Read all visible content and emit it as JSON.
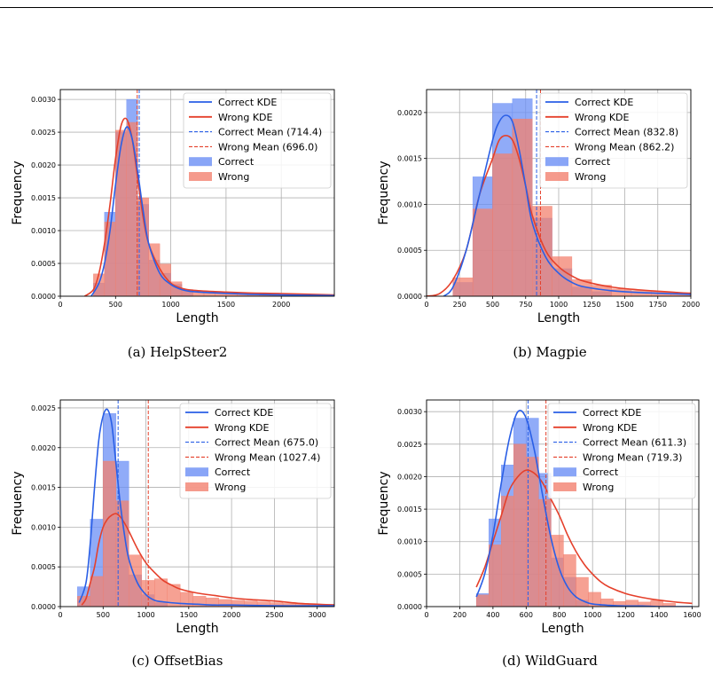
{
  "colors": {
    "correct": "#2a5fe6",
    "correct_fill": "#6b8ff5",
    "wrong": "#e5402b",
    "wrong_fill": "#f3816f",
    "grid": "#b0b0b0"
  },
  "chart_data": [
    {
      "type": "bar",
      "caption": "(a) HelpSteer2",
      "xlabel": "Length",
      "ylabel": "Frequency",
      "xlim": [
        0,
        2480
      ],
      "ylim": [
        0,
        0.00315
      ],
      "xticks": [
        0,
        500,
        1000,
        1500,
        2000
      ],
      "yticks": [
        0,
        0.0005,
        0.001,
        0.0015,
        0.002,
        0.0025,
        0.003
      ],
      "ytick_labels": [
        "0.0000",
        "0.0005",
        "0.0010",
        "0.0015",
        "0.0020",
        "0.0025",
        "0.0030"
      ],
      "grid": true,
      "legend_position": "top-right",
      "legend": [
        "Correct KDE",
        "Wrong KDE",
        "Correct Mean (714.4)",
        "Wrong Mean (696.0)",
        "Correct",
        "Wrong"
      ],
      "correct_mean": 714.4,
      "wrong_mean": 696.0,
      "correct_hist": {
        "edges": [
          300,
          400,
          500,
          600,
          700,
          800,
          900,
          1000,
          1100,
          1200
        ],
        "values": [
          0.0002,
          0.00128,
          0.0025,
          0.003,
          0.0014,
          0.00055,
          0.00035,
          0.00018,
          0.0001
        ]
      },
      "wrong_hist": {
        "edges": [
          300,
          400,
          500,
          600,
          700,
          800,
          900,
          1000,
          1100,
          1200,
          1300,
          1400,
          1500,
          1600,
          1700,
          1800,
          1900,
          2000,
          2480
        ],
        "values": [
          0.00034,
          0.00113,
          0.00253,
          0.00265,
          0.0015,
          0.0008,
          0.00049,
          0.00022,
          0.0001,
          8e-05,
          7e-05,
          6e-05,
          5e-05,
          5e-05,
          4e-05,
          4e-05,
          4e-05,
          2e-05
        ]
      },
      "correct_kde": {
        "x": [
          280,
          350,
          400,
          450,
          500,
          550,
          600,
          650,
          700,
          750,
          800,
          900,
          1000,
          1100,
          1200,
          1400,
          1700,
          2000,
          2480
        ],
        "y": [
          0.0,
          0.0002,
          0.0005,
          0.001,
          0.0017,
          0.0023,
          0.00258,
          0.0024,
          0.0019,
          0.0013,
          0.0008,
          0.00035,
          0.00018,
          0.0001,
          7e-05,
          5e-05,
          3e-05,
          2e-05,
          1e-05
        ]
      },
      "wrong_kde": {
        "x": [
          220,
          300,
          350,
          400,
          450,
          500,
          550,
          600,
          650,
          700,
          750,
          800,
          900,
          1000,
          1100,
          1200,
          1400,
          1700,
          2000,
          2480
        ],
        "y": [
          0.0,
          0.0001,
          0.00035,
          0.0008,
          0.0014,
          0.0021,
          0.0026,
          0.0027,
          0.0024,
          0.0018,
          0.0012,
          0.0008,
          0.00042,
          0.0002,
          0.00012,
          9e-05,
          7e-05,
          5e-05,
          4e-05,
          2e-05
        ]
      }
    },
    {
      "type": "bar",
      "caption": "(b) Magpie",
      "xlabel": "Length",
      "ylabel": "Frequency",
      "xlim": [
        0,
        2000
      ],
      "ylim": [
        0,
        0.00225
      ],
      "xticks": [
        0,
        250,
        500,
        750,
        1000,
        1250,
        1500,
        1750,
        2000
      ],
      "yticks": [
        0,
        0.0005,
        0.001,
        0.0015,
        0.002
      ],
      "ytick_labels": [
        "0.0000",
        "0.0005",
        "0.0010",
        "0.0015",
        "0.0020"
      ],
      "grid": true,
      "legend_position": "top-right",
      "legend": [
        "Correct KDE",
        "Wrong KDE",
        "Correct Mean (832.8)",
        "Wrong Mean (862.2)",
        "Correct",
        "Wrong"
      ],
      "correct_mean": 832.8,
      "wrong_mean": 862.2,
      "correct_hist": {
        "edges": [
          200,
          350,
          500,
          650,
          800,
          950,
          1100,
          1250,
          1400
        ],
        "values": [
          0.00015,
          0.0013,
          0.0021,
          0.00215,
          0.00085,
          0.0003,
          0.0001,
          5e-05
        ]
      },
      "wrong_hist": {
        "edges": [
          200,
          350,
          500,
          650,
          800,
          950,
          1100,
          1250,
          1400,
          1550,
          1700,
          1850,
          2000
        ],
        "values": [
          0.0002,
          0.00095,
          0.00155,
          0.00193,
          0.00098,
          0.00043,
          0.00018,
          0.00012,
          8e-05,
          6e-05,
          5e-05,
          4e-05
        ]
      },
      "correct_kde": {
        "x": [
          130,
          200,
          300,
          400,
          500,
          550,
          600,
          650,
          700,
          750,
          800,
          900,
          1000,
          1100,
          1200,
          1400,
          1600,
          1800,
          2000
        ],
        "y": [
          0.0,
          0.0001,
          0.0005,
          0.0011,
          0.0017,
          0.0019,
          0.00197,
          0.0019,
          0.0016,
          0.0012,
          0.0008,
          0.00043,
          0.00025,
          0.00015,
          0.0001,
          6e-05,
          4e-05,
          3e-05,
          2e-05
        ]
      },
      "wrong_kde": {
        "x": [
          0,
          100,
          200,
          300,
          400,
          500,
          550,
          600,
          650,
          700,
          750,
          800,
          900,
          1000,
          1100,
          1200,
          1400,
          1600,
          1800,
          2000
        ],
        "y": [
          0.0,
          3e-05,
          0.00018,
          0.0005,
          0.0011,
          0.0015,
          0.0017,
          0.00175,
          0.0017,
          0.0015,
          0.0012,
          0.00088,
          0.0005,
          0.00032,
          0.00022,
          0.00016,
          0.0001,
          7e-05,
          5e-05,
          3e-05
        ]
      }
    },
    {
      "type": "bar",
      "caption": "(c) OffsetBias",
      "xlabel": "Length",
      "ylabel": "Frequency",
      "xlim": [
        0,
        3200
      ],
      "ylim": [
        0,
        0.0026
      ],
      "xticks": [
        0,
        500,
        1000,
        1500,
        2000,
        2500,
        3000
      ],
      "yticks": [
        0,
        0.0005,
        0.001,
        0.0015,
        0.002,
        0.0025
      ],
      "ytick_labels": [
        "0.0000",
        "0.0005",
        "0.0010",
        "0.0015",
        "0.0020",
        "0.0025"
      ],
      "grid": true,
      "legend_position": "top-right",
      "legend": [
        "Correct KDE",
        "Wrong KDE",
        "Correct Mean (675.0)",
        "Wrong Mean (1027.4)",
        "Correct",
        "Wrong"
      ],
      "correct_mean": 675.0,
      "wrong_mean": 1027.4,
      "correct_hist": {
        "edges": [
          200,
          350,
          500,
          650,
          800,
          950,
          1100,
          1250
        ],
        "values": [
          0.00025,
          0.0011,
          0.00243,
          0.00183,
          0.0004,
          0.00015,
          5e-05
        ]
      },
      "wrong_hist": {
        "edges": [
          200,
          350,
          500,
          650,
          800,
          950,
          1100,
          1250,
          1400,
          1550,
          1700,
          1850,
          2000,
          2150,
          2300,
          2450,
          2600,
          2750,
          2900,
          3050,
          3200
        ],
        "values": [
          0.00013,
          0.00038,
          0.00183,
          0.00133,
          0.00065,
          0.00033,
          0.00035,
          0.00028,
          0.00018,
          0.00013,
          0.00011,
          9e-05,
          8e-05,
          7e-05,
          6e-05,
          5e-05,
          4e-05,
          4e-05,
          3e-05,
          3e-05
        ]
      },
      "correct_kde": {
        "x": [
          220,
          300,
          350,
          400,
          450,
          500,
          550,
          600,
          650,
          700,
          750,
          800,
          900,
          1000,
          1100,
          1200,
          1400,
          1600,
          1800,
          2000,
          2500,
          3000,
          3200
        ],
        "y": [
          5e-05,
          0.0003,
          0.0008,
          0.0015,
          0.0021,
          0.0024,
          0.00248,
          0.0023,
          0.0018,
          0.0013,
          0.0009,
          0.0006,
          0.0003,
          0.00015,
          8e-05,
          6e-05,
          4e-05,
          3e-05,
          2e-05,
          2e-05,
          1e-05,
          1e-05,
          1e-05
        ]
      },
      "wrong_kde": {
        "x": [
          250,
          300,
          350,
          400,
          450,
          500,
          550,
          600,
          650,
          700,
          750,
          800,
          900,
          1000,
          1100,
          1200,
          1300,
          1400,
          1600,
          1800,
          2000,
          2200,
          2500,
          2800,
          3000,
          3200
        ],
        "y": [
          2e-05,
          0.0001,
          0.0003,
          0.0005,
          0.0008,
          0.001,
          0.0011,
          0.00115,
          0.00117,
          0.00113,
          0.00105,
          0.00095,
          0.00073,
          0.00055,
          0.00043,
          0.00033,
          0.00027,
          0.00022,
          0.00017,
          0.00014,
          0.00011,
          9e-05,
          7e-05,
          4e-05,
          3e-05,
          2e-05
        ]
      }
    },
    {
      "type": "bar",
      "caption": "(d) WildGuard",
      "xlabel": "Length",
      "ylabel": "Frequency",
      "xlim": [
        0,
        1640
      ],
      "ylim": [
        0,
        0.00318
      ],
      "xticks": [
        0,
        200,
        400,
        600,
        800,
        1000,
        1200,
        1400,
        1600
      ],
      "yticks": [
        0,
        0.0005,
        0.001,
        0.0015,
        0.002,
        0.0025,
        0.003
      ],
      "ytick_labels": [
        "0.0000",
        "0.0005",
        "0.0010",
        "0.0015",
        "0.0020",
        "0.0025",
        "0.0030"
      ],
      "grid": true,
      "legend_position": "top-right",
      "legend": [
        "Correct KDE",
        "Wrong KDE",
        "Correct Mean (611.3)",
        "Wrong Mean (719.3)",
        "Correct",
        "Wrong"
      ],
      "correct_mean": 611.3,
      "wrong_mean": 719.3,
      "correct_hist": {
        "edges": [
          300,
          375,
          450,
          525,
          600,
          675,
          750,
          825,
          900,
          975
        ],
        "values": [
          0.0002,
          0.00135,
          0.00218,
          0.0029,
          0.0029,
          0.00205,
          0.00075,
          0.00045,
          0.0001
        ]
      },
      "wrong_hist": {
        "edges": [
          300,
          375,
          450,
          525,
          600,
          675,
          750,
          825,
          900,
          975,
          1050,
          1125,
          1200,
          1275,
          1350,
          1425,
          1500
        ],
        "values": [
          0.00018,
          0.00095,
          0.0017,
          0.0025,
          0.0023,
          0.00165,
          0.0011,
          0.0008,
          0.00045,
          0.00022,
          0.00012,
          8e-05,
          0.0001,
          7e-05,
          0.0001,
          5e-05
        ]
      },
      "correct_kde": {
        "x": [
          300,
          350,
          400,
          450,
          500,
          550,
          600,
          650,
          700,
          750,
          800,
          850,
          900,
          950,
          1000,
          1100,
          1200,
          1300,
          1400,
          1600
        ],
        "y": [
          0.00015,
          0.0005,
          0.0011,
          0.0019,
          0.0026,
          0.003,
          0.0029,
          0.0024,
          0.0017,
          0.00105,
          0.00058,
          0.0003,
          0.00015,
          8e-05,
          4e-05,
          2e-05,
          1e-05,
          1e-05,
          0.0,
          0.0
        ]
      },
      "wrong_kde": {
        "x": [
          300,
          350,
          400,
          450,
          500,
          550,
          600,
          650,
          700,
          750,
          800,
          850,
          900,
          950,
          1000,
          1050,
          1100,
          1200,
          1300,
          1400,
          1500,
          1600
        ],
        "y": [
          0.0003,
          0.0006,
          0.001,
          0.0014,
          0.0018,
          0.002,
          0.0021,
          0.00205,
          0.0019,
          0.00165,
          0.0014,
          0.0011,
          0.00085,
          0.00065,
          0.0005,
          0.00038,
          0.0003,
          0.0002,
          0.00014,
          0.0001,
          7e-05,
          5e-05
        ]
      }
    }
  ]
}
